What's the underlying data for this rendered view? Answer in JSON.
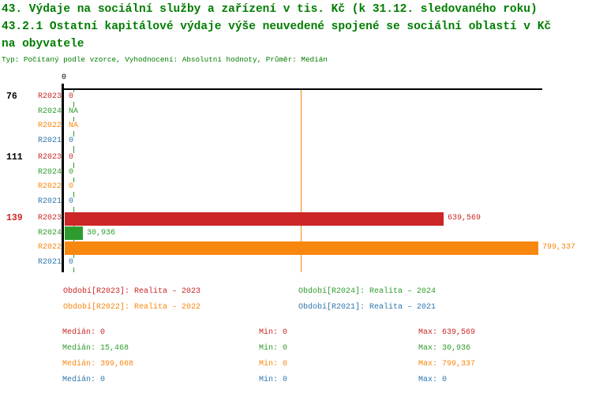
{
  "title": {
    "line1": "43. Výdaje na sociální služby a zařízení v tis. Kč (k 31.12. sledovaného roku)",
    "line2": "43.2.1 Ostatní kapitálové výdaje výše neuvedené spojené se sociální oblastí v Kč",
    "line3": "na obyvatele",
    "meta": "Typ: Počítaný podle vzorce, Vyhodnocení: Absolutní hodnoty, Průměr: Medián"
  },
  "colors": {
    "title_green": "#007D00",
    "red": "#CC2626",
    "green": "#2E9B2E",
    "orange": "#F8870F",
    "blue": "#2E77AE",
    "axis_black": "#000000"
  },
  "chart_data": {
    "type": "bar",
    "orientation": "horizontal-grouped",
    "x_axis": {
      "zero_label": "0",
      "gridlines": false
    },
    "series_order": [
      "R2023",
      "R2024",
      "R2022",
      "R2021"
    ],
    "series_colors": {
      "R2023": "red",
      "R2024": "green",
      "R2022": "orange",
      "R2021": "blue"
    },
    "groups": [
      {
        "id": "76",
        "highlighted": false,
        "rows": [
          {
            "series": "R2023",
            "value": 0,
            "display": "0"
          },
          {
            "series": "R2024",
            "value": null,
            "display": "NA"
          },
          {
            "series": "R2022",
            "value": null,
            "display": "NA"
          },
          {
            "series": "R2021",
            "value": 0,
            "display": "0"
          }
        ]
      },
      {
        "id": "111",
        "highlighted": false,
        "rows": [
          {
            "series": "R2023",
            "value": 0,
            "display": "0"
          },
          {
            "series": "R2024",
            "value": 0,
            "display": "0"
          },
          {
            "series": "R2022",
            "value": 0,
            "display": "0"
          },
          {
            "series": "R2021",
            "value": 0,
            "display": "0"
          }
        ]
      },
      {
        "id": "139",
        "highlighted": true,
        "rows": [
          {
            "series": "R2023",
            "value": 639569,
            "display": "639,569"
          },
          {
            "series": "R2024",
            "value": 30936,
            "display": "30,936"
          },
          {
            "series": "R2022",
            "value": 799337,
            "display": "799,337"
          },
          {
            "series": "R2021",
            "value": 0,
            "display": "0"
          }
        ]
      }
    ],
    "median_lines": [
      {
        "series": "R2024",
        "value": 15468
      },
      {
        "series": "R2022",
        "value": 399668
      }
    ]
  },
  "legend": [
    {
      "series": "R2023",
      "label": "Období[R2023]: Realita – 2023"
    },
    {
      "series": "R2024",
      "label": "Období[R2024]: Realita – 2024"
    },
    {
      "series": "R2022",
      "label": "Období[R2022]: Realita – 2022"
    },
    {
      "series": "R2021",
      "label": "Období[R2021]: Realita – 2021"
    }
  ],
  "stats": {
    "labels": {
      "median": "Medián:",
      "min": "Min:",
      "max": "Max:"
    },
    "rows": [
      {
        "series": "R2023",
        "median": "0",
        "min": "0",
        "max": "639,569"
      },
      {
        "series": "R2024",
        "median": "15,468",
        "min": "0",
        "max": "30,936"
      },
      {
        "series": "R2022",
        "median": "399,668",
        "min": "0",
        "max": "799,337"
      },
      {
        "series": "R2021",
        "median": "0",
        "min": "0",
        "max": "0"
      }
    ]
  }
}
